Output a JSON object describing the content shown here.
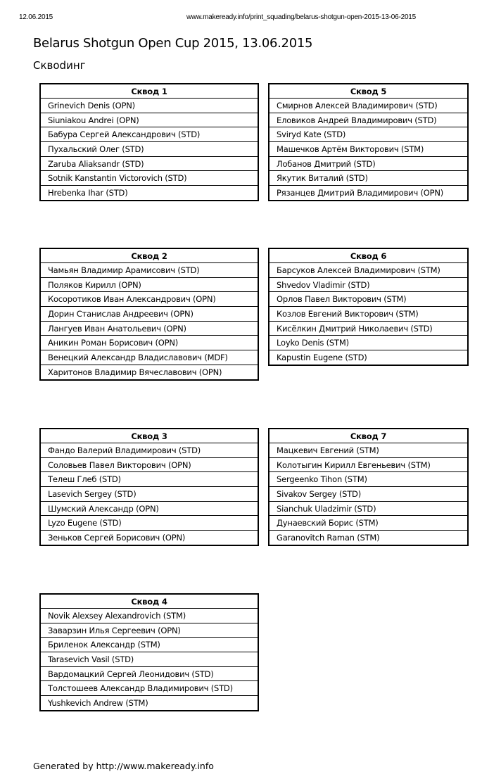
{
  "print_header": {
    "date": "12.06.2015",
    "url": "www.makeready.info/print_squading/belarus-shotgun-open-2015-13-06-2015"
  },
  "title": "Belarus Shotgun Open Cup 2015, 13.06.2015",
  "subtitle": "Сквodинг",
  "squads": [
    {
      "name": "Сквод 1",
      "members": [
        "Grinevich Denis (OPN)",
        "Siuniakou Andrei (OPN)",
        "Бабура Сергей Александрович (STD)",
        "Пухальский Олег (STD)",
        "Zaruba Aliaksandr (STD)",
        "Sotnik Kanstantin Victorovich (STD)",
        "Hrebenka Ihar (STD)"
      ]
    },
    {
      "name": "Сквод 2",
      "members": [
        "Чамьян Владимир Арамисович (STD)",
        "Поляков Кирилл (OPN)",
        "Косоротиков Иван Александрович (OPN)",
        "Дорин Станислав Андреевич (OPN)",
        "Лангуев Иван Анатольевич (OPN)",
        "Аникин Роман Борисович (OPN)",
        "Венецкий Александр Владиславович (MDF)",
        "Харитонов Владимир Вячеславович (OPN)"
      ]
    },
    {
      "name": "Сквод 3",
      "members": [
        "Фандо Валерий Владимирович (STD)",
        "Соловьев Павел Викторович (OPN)",
        "Телеш Глеб (STD)",
        "Lasevich Sergey (STD)",
        "Шумский Александр (OPN)",
        "Lyzo Eugene (STD)",
        "Зеньков Сергей Борисович (OPN)"
      ]
    },
    {
      "name": "Сквод 4",
      "members": [
        "Novik Alexsey Alexandrovich (STM)",
        "Заварзин Илья Сергеевич (OPN)",
        "Бриленок Александр (STM)",
        "Tarasevich Vasil (STD)",
        "Вардомацкий Сергей Леонидович (STD)",
        "Толстошеев Александр Владимирович (STD)",
        "Yushkevich Andrew (STM)"
      ]
    },
    {
      "name": "Сквод 5",
      "members": [
        "Смирнов Алексей Владимирович (STD)",
        "Еловиков Андрей Владимирович (STD)",
        "Sviryd Kate (STD)",
        "Машечков Артём Викторович (STM)",
        "Лобанов Дмитрий (STD)",
        "Якутик Виталий (STD)",
        "Рязанцев Дмитрий Владимирович (OPN)"
      ]
    },
    {
      "name": "Сквод 6",
      "members": [
        "Барсуков Алексей Владимирович (STM)",
        "Shvedov Vladimir (STD)",
        "Орлов Павел Викторович (STM)",
        "Козлов Евгений Викторович (STM)",
        "Кисёлкин Дмитрий Николаевич (STD)",
        "Loyko Denis (STM)",
        "Kapustin Eugene (STD)"
      ]
    },
    {
      "name": "Сквод 7",
      "members": [
        "Мацкевич Евгений (STM)",
        "Колотыгин Кирилл Евгеньевич (STM)",
        "Sergeenko Tihon (STM)",
        "Sivakov Sergey (STD)",
        "Sianchuk Uladzimir (STD)",
        "Дунаевский Борис (STM)",
        "Garanovitch Raman (STM)"
      ]
    }
  ],
  "footer": "Generated by http://www.makeready.info"
}
